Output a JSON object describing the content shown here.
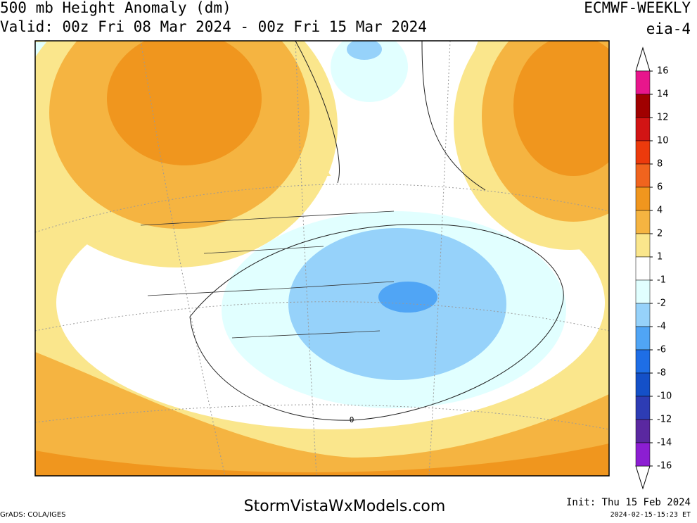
{
  "header": {
    "title": "500 mb Height Anomaly (dm)",
    "valid": "Valid: 00z Fri 08 Mar 2024 - 00z Fri 15 Mar 2024",
    "model": "ECMWF-WEEKLY",
    "product": "eia-4"
  },
  "map": {
    "contour_label": 0
  },
  "colorbar": {
    "levels": [
      16,
      14,
      12,
      10,
      8,
      6,
      4,
      2,
      1,
      -1,
      -2,
      -4,
      -6,
      -8,
      -10,
      -12,
      -14,
      -16
    ],
    "colors": [
      "#e8168c",
      "#a00000",
      "#d21414",
      "#ec3a0c",
      "#f0641e",
      "#f0961e",
      "#f5b441",
      "#fae68c",
      "#ffffff",
      "#e1ffff",
      "#96d2fa",
      "#50a5f5",
      "#1e6ee6",
      "#1450c8",
      "#2d3cb4",
      "#5a28a0",
      "#8c1ed2"
    ]
  },
  "footer": {
    "credit": "GrADS: COLA/IGES",
    "site": "StormVistaWxModels.com",
    "init": "Init: Thu 15 Feb 2024",
    "timestamp": "2024-02-15-15:23 ET"
  }
}
